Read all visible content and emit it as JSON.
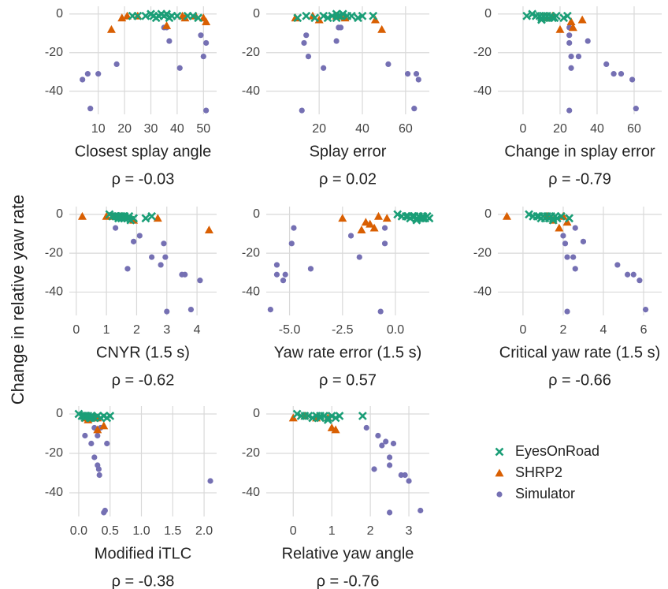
{
  "ylabel": "Change in relative yaw rate",
  "chart_data": [
    {
      "type": "scatter",
      "xlabel": "Closest splay angle",
      "annotation": "ρ = -0.03",
      "grid": true,
      "xlim": [
        -1,
        55
      ],
      "ylim": [
        -52,
        4
      ],
      "xticks": [
        10,
        20,
        30,
        40,
        50
      ],
      "yticks": [
        0,
        -20,
        -40
      ],
      "series": [
        {
          "name": "EyesOnRoad",
          "color": "#1b9e77",
          "marker": "x",
          "x": [
            23,
            25,
            28,
            30,
            31,
            32,
            33,
            34,
            35,
            36,
            37,
            38,
            40,
            44,
            46,
            48
          ],
          "values": [
            -1,
            -1,
            -1,
            0,
            -1,
            -2,
            -1,
            0,
            -1,
            0,
            -2,
            -1,
            -1,
            -1,
            -1,
            -2
          ]
        },
        {
          "name": "SHRP2",
          "color": "#d95f02",
          "marker": "triangle",
          "x": [
            15,
            19,
            21,
            42,
            43,
            50,
            51,
            36,
            25,
            47
          ],
          "values": [
            -8,
            -2,
            -1,
            -1,
            -2,
            -2,
            -4,
            -6,
            -1,
            -1
          ]
        },
        {
          "name": "Simulator",
          "color": "#7570b3",
          "marker": "circle",
          "x": [
            4,
            6,
            7,
            10,
            17,
            35,
            36,
            37,
            41,
            49,
            50,
            51,
            51
          ],
          "values": [
            -34,
            -31,
            -49,
            -31,
            -26,
            -7,
            -7,
            -14,
            -28,
            -11,
            -22,
            -15,
            -50
          ]
        }
      ]
    },
    {
      "type": "scatter",
      "xlabel": "Splay error",
      "annotation": "ρ = 0.02",
      "grid": true,
      "xlim": [
        -4.5,
        71
      ],
      "ylim": [
        -52,
        4
      ],
      "xticks": [
        20,
        40,
        60
      ],
      "yticks": [
        0,
        -20,
        -40
      ],
      "series": [
        {
          "name": "EyesOnRoad",
          "color": "#1b9e77",
          "marker": "x",
          "x": [
            10,
            14,
            18,
            22,
            24,
            26,
            28,
            29,
            30,
            31,
            33,
            35,
            38,
            40,
            45,
            28
          ],
          "values": [
            -2,
            -1,
            -2,
            -1,
            -2,
            -1,
            0,
            -1,
            -1,
            0,
            -1,
            -1,
            -2,
            -1,
            -1,
            -2
          ]
        },
        {
          "name": "SHRP2",
          "color": "#d95f02",
          "marker": "triangle",
          "x": [
            9,
            17,
            32,
            46,
            49,
            20,
            28,
            30
          ],
          "values": [
            -2,
            -1,
            -2,
            -3,
            -8,
            -3,
            -1,
            -1
          ]
        },
        {
          "name": "Simulator",
          "color": "#7570b3",
          "marker": "circle",
          "x": [
            12,
            13,
            14,
            15,
            22,
            28,
            29,
            30,
            52,
            61,
            64,
            65,
            66
          ],
          "values": [
            -50,
            -15,
            -11,
            -22,
            -28,
            -14,
            -7,
            -7,
            -26,
            -31,
            -49,
            -31,
            -34
          ]
        }
      ]
    },
    {
      "type": "scatter",
      "xlabel": "Change in splay error",
      "annotation": "ρ = -0.79",
      "grid": true,
      "xlim": [
        -13.6,
        74.9
      ],
      "ylim": [
        -52,
        4
      ],
      "xticks": [
        0,
        20,
        40,
        60
      ],
      "yticks": [
        0,
        -20,
        -40
      ],
      "series": [
        {
          "name": "EyesOnRoad",
          "color": "#1b9e77",
          "marker": "x",
          "x": [
            2,
            5,
            7,
            9,
            10,
            11,
            12,
            13,
            14,
            15,
            16,
            17,
            18,
            22,
            24,
            10
          ],
          "values": [
            -1,
            0,
            -1,
            -1,
            -2,
            -1,
            -2,
            -1,
            -2,
            -1,
            -2,
            -2,
            -1,
            -2,
            -1,
            -3
          ]
        },
        {
          "name": "SHRP2",
          "color": "#d95f02",
          "marker": "triangle",
          "x": [
            20,
            27,
            32,
            11,
            16,
            26,
            13
          ],
          "values": [
            -8,
            -7,
            -3,
            -2,
            -1,
            -4,
            -2
          ]
        },
        {
          "name": "Simulator",
          "color": "#7570b3",
          "marker": "circle",
          "x": [
            25,
            25,
            25,
            26,
            26,
            25,
            30,
            35,
            45,
            49,
            53,
            59,
            61
          ],
          "values": [
            -7,
            -11,
            -15,
            -22,
            -28,
            -50,
            -22,
            -14,
            -26,
            -31,
            -31,
            -34,
            -49
          ]
        }
      ]
    },
    {
      "type": "scatter",
      "xlabel": "CNYR (1.5 s)",
      "annotation": "ρ = -0.62",
      "grid": true,
      "xlim": [
        -0.23,
        4.65
      ],
      "ylim": [
        -52,
        4
      ],
      "xticks": [
        0,
        1,
        2,
        3,
        4
      ],
      "yticks": [
        0,
        -20,
        -40
      ],
      "series": [
        {
          "name": "EyesOnRoad",
          "color": "#1b9e77",
          "marker": "x",
          "x": [
            1.1,
            1.2,
            1.3,
            1.4,
            1.5,
            1.6,
            1.7,
            1.8,
            1.9,
            2.3,
            2.5,
            1.5,
            1.35,
            1.75,
            1.6,
            1.45
          ],
          "values": [
            0,
            -1,
            -1,
            -2,
            -1,
            -1,
            -2,
            -3,
            -2,
            -2,
            -1,
            -2,
            -1,
            -1,
            -2,
            -1
          ]
        },
        {
          "name": "SHRP2",
          "color": "#d95f02",
          "marker": "triangle",
          "x": [
            0.2,
            1.0,
            1.5,
            1.9,
            2.7,
            4.4,
            1.2
          ],
          "values": [
            -1,
            -1,
            -1,
            -3,
            -2,
            -8,
            -1
          ]
        },
        {
          "name": "Simulator",
          "color": "#7570b3",
          "marker": "circle",
          "x": [
            1.3,
            1.7,
            1.9,
            2.1,
            2.5,
            2.8,
            2.9,
            2.95,
            3.0,
            3.5,
            3.6,
            3.8,
            4.1
          ],
          "values": [
            -7,
            -28,
            -14,
            -11,
            -22,
            -26,
            -15,
            -22,
            -50,
            -31,
            -31,
            -49,
            -34
          ]
        }
      ]
    },
    {
      "type": "scatter",
      "xlabel": "Yaw rate error (1.5 s)",
      "annotation": "ρ = 0.57",
      "grid": true,
      "xlim": [
        -6.1,
        1.6
      ],
      "ylim": [
        -52,
        4
      ],
      "xticks": [
        {
          "value": -5,
          "label": "-5.0"
        },
        -2.5,
        {
          "value": 0,
          "label": "0.0"
        }
      ],
      "yticks": [
        0,
        -20,
        -40
      ],
      "series": [
        {
          "name": "EyesOnRoad",
          "color": "#1b9e77",
          "marker": "x",
          "x": [
            0.1,
            0.3,
            0.5,
            0.7,
            0.8,
            0.9,
            1.0,
            1.1,
            1.2,
            1.3,
            1.4,
            1.5,
            1.6,
            0.6,
            1.0,
            1.3
          ],
          "values": [
            0,
            -1,
            -1,
            -2,
            -1,
            -1,
            -2,
            -1,
            -2,
            -1,
            -2,
            -1,
            -2,
            -1,
            -3,
            -2
          ]
        },
        {
          "name": "SHRP2",
          "color": "#d95f02",
          "marker": "triangle",
          "x": [
            -2.5,
            -1.6,
            -1.4,
            -1.0,
            -0.8,
            -0.4,
            -1.2
          ],
          "values": [
            -2,
            -8,
            -4,
            -7,
            -1,
            -2,
            -5
          ]
        },
        {
          "name": "Simulator",
          "color": "#7570b3",
          "marker": "circle",
          "x": [
            -5.9,
            -5.6,
            -5.6,
            -5.3,
            -5.2,
            -4.9,
            -4.8,
            -4.0,
            -2.1,
            -1.7,
            -0.7,
            -0.5,
            -0.5
          ],
          "values": [
            -49,
            -26,
            -31,
            -34,
            -31,
            -15,
            -7,
            -28,
            -11,
            -22,
            -50,
            -15,
            -7
          ]
        }
      ]
    },
    {
      "type": "scatter",
      "xlabel": "Critical yaw rate (1.5 s)",
      "annotation": "ρ = -0.66",
      "grid": true,
      "xlim": [
        -1.25,
        6.9
      ],
      "ylim": [
        -52,
        4
      ],
      "xticks": [
        0,
        2,
        4,
        6
      ],
      "yticks": [
        0,
        -20,
        -40
      ],
      "series": [
        {
          "name": "EyesOnRoad",
          "color": "#1b9e77",
          "marker": "x",
          "x": [
            0.3,
            0.5,
            0.7,
            0.9,
            1.0,
            1.1,
            1.2,
            1.3,
            1.4,
            1.5,
            1.6,
            1.7,
            1.9,
            2.3,
            0.8,
            1.5
          ],
          "values": [
            0,
            -1,
            -1,
            -2,
            -1,
            -2,
            -1,
            -2,
            -1,
            -2,
            -1,
            -2,
            -1,
            -2,
            -1,
            -3
          ]
        },
        {
          "name": "SHRP2",
          "color": "#d95f02",
          "marker": "triangle",
          "x": [
            -0.8,
            1.2,
            1.5,
            1.8,
            2.0,
            2.2
          ],
          "values": [
            -1,
            -1,
            -3,
            -7,
            -1,
            -4
          ]
        },
        {
          "name": "Simulator",
          "color": "#7570b3",
          "marker": "circle",
          "x": [
            2.0,
            2.1,
            2.2,
            2.2,
            2.5,
            2.6,
            2.6,
            3.0,
            4.7,
            5.2,
            5.5,
            5.8,
            6.1
          ],
          "values": [
            -11,
            -15,
            -22,
            -50,
            -22,
            -28,
            -7,
            -14,
            -26,
            -31,
            -31,
            -34,
            -49
          ]
        }
      ]
    },
    {
      "type": "scatter",
      "xlabel": "Modified iTLC",
      "annotation": "ρ = -0.38",
      "grid": true,
      "xlim": [
        -0.15,
        2.2
      ],
      "ylim": [
        -52,
        4
      ],
      "xticks": [
        {
          "value": 0,
          "label": "0.0"
        },
        0.5,
        {
          "value": 1,
          "label": "1.0"
        },
        1.5,
        {
          "value": 2,
          "label": "2.0"
        }
      ],
      "yticks": [
        0,
        -20,
        -40
      ],
      "series": [
        {
          "name": "EyesOnRoad",
          "color": "#1b9e77",
          "marker": "x",
          "x": [
            0.0,
            0.05,
            0.08,
            0.1,
            0.12,
            0.15,
            0.18,
            0.2,
            0.25,
            0.3,
            0.35,
            0.4,
            0.45,
            0.5,
            0.1,
            0.2
          ],
          "values": [
            0,
            -1,
            -1,
            -2,
            -1,
            -1,
            -2,
            -1,
            -2,
            -1,
            -2,
            -1,
            -2,
            -1,
            -1,
            -2
          ]
        },
        {
          "name": "SHRP2",
          "color": "#d95f02",
          "marker": "triangle",
          "x": [
            0.1,
            0.15,
            0.25,
            0.3,
            0.3,
            0.4
          ],
          "values": [
            -2,
            -3,
            -1,
            -8,
            -2,
            -6
          ]
        },
        {
          "name": "Simulator",
          "color": "#7570b3",
          "marker": "circle",
          "x": [
            0.1,
            0.2,
            0.25,
            0.3,
            0.32,
            0.33,
            0.35,
            0.4,
            0.42,
            0.45,
            2.1,
            0.25,
            0.3
          ],
          "values": [
            -11,
            -15,
            -22,
            -26,
            -28,
            -31,
            -7,
            -50,
            -49,
            -15,
            -34,
            -7,
            -11
          ]
        }
      ]
    },
    {
      "type": "scatter",
      "xlabel": "Relative yaw angle",
      "annotation": "ρ = -0.76",
      "grid": true,
      "xlim": [
        -0.7,
        3.53
      ],
      "ylim": [
        -52,
        4
      ],
      "xticks": [
        0,
        1,
        2,
        3
      ],
      "yticks": [
        0,
        -20,
        -40
      ],
      "series": [
        {
          "name": "EyesOnRoad",
          "color": "#1b9e77",
          "marker": "x",
          "x": [
            0.1,
            0.2,
            0.3,
            0.4,
            0.5,
            0.6,
            0.7,
            0.8,
            0.9,
            1.0,
            1.1,
            1.2,
            1.8,
            0.5,
            0.7,
            0.9
          ],
          "values": [
            0,
            -1,
            -1,
            -1,
            -2,
            -1,
            -2,
            -1,
            -2,
            -1,
            -2,
            -1,
            -1,
            -2,
            -1,
            -3
          ]
        },
        {
          "name": "SHRP2",
          "color": "#d95f02",
          "marker": "triangle",
          "x": [
            0,
            0.9,
            1.0,
            1.1,
            0.3,
            0.6
          ],
          "values": [
            -2,
            -2,
            -7,
            -8,
            -1,
            -2
          ]
        },
        {
          "name": "Simulator",
          "color": "#7570b3",
          "marker": "circle",
          "x": [
            1.9,
            2.1,
            2.2,
            2.4,
            2.5,
            2.5,
            2.6,
            2.8,
            2.9,
            3.0,
            2.5,
            3.3,
            2.3
          ],
          "values": [
            -7,
            -28,
            -11,
            -14,
            -22,
            -26,
            -15,
            -31,
            -31,
            -34,
            -50,
            -49,
            -16
          ]
        }
      ]
    }
  ]
}
